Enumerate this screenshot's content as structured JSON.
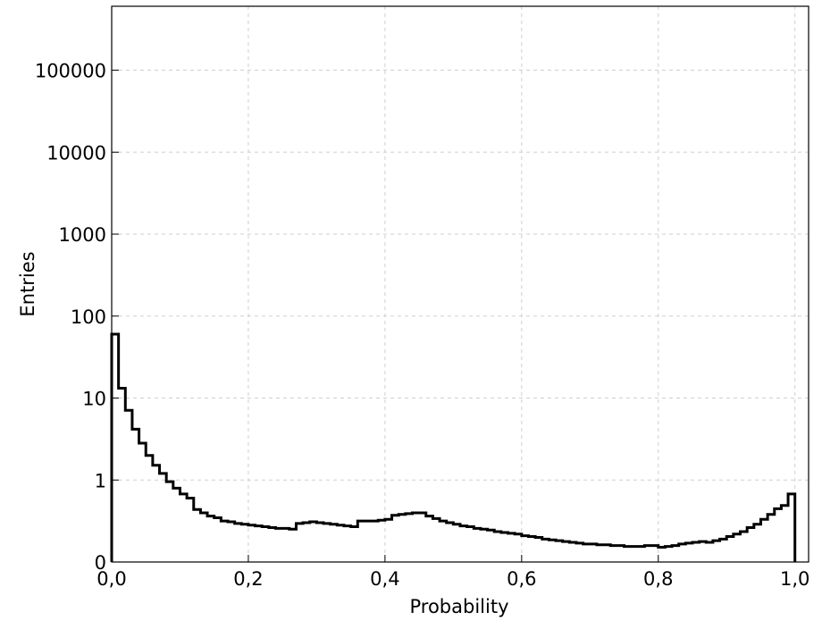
{
  "chart_data": {
    "type": "histogram-step",
    "xlabel": "Probability",
    "ylabel": "Entries",
    "xlim": [
      0.0,
      1.02
    ],
    "ylim_log_decades": [
      0,
      6.78
    ],
    "y_scale": "log (0 shown at bottom)",
    "grid": true,
    "x_ticks": [
      {
        "value": 0.0,
        "label": "0,0"
      },
      {
        "value": 0.2,
        "label": "0,2"
      },
      {
        "value": 0.4,
        "label": "0,4"
      },
      {
        "value": 0.6,
        "label": "0,6"
      },
      {
        "value": 0.8,
        "label": "0,8"
      },
      {
        "value": 1.0,
        "label": "1,0"
      }
    ],
    "y_ticks": [
      {
        "value": 0,
        "label": "0"
      },
      {
        "value": 1,
        "label": "1"
      },
      {
        "value": 10,
        "label": "10"
      },
      {
        "value": 100,
        "label": "100"
      },
      {
        "value": 1000,
        "label": "1000"
      },
      {
        "value": 10000,
        "label": "10000"
      },
      {
        "value": 100000,
        "label": "100000"
      }
    ],
    "series": [
      {
        "color": "#000000",
        "points": [
          [
            0.0,
            2.78
          ],
          [
            0.01,
            2.12
          ],
          [
            0.02,
            1.85
          ],
          [
            0.03,
            1.62
          ],
          [
            0.04,
            1.45
          ],
          [
            0.05,
            1.3
          ],
          [
            0.06,
            1.18
          ],
          [
            0.07,
            1.08
          ],
          [
            0.08,
            0.98
          ],
          [
            0.09,
            0.9
          ],
          [
            0.1,
            0.83
          ],
          [
            0.11,
            0.78
          ],
          [
            0.12,
            0.64
          ],
          [
            0.13,
            0.6
          ],
          [
            0.14,
            0.56
          ],
          [
            0.15,
            0.54
          ],
          [
            0.16,
            0.5
          ],
          [
            0.17,
            0.49
          ],
          [
            0.18,
            0.47
          ],
          [
            0.19,
            0.46
          ],
          [
            0.2,
            0.45
          ],
          [
            0.21,
            0.44
          ],
          [
            0.22,
            0.43
          ],
          [
            0.23,
            0.42
          ],
          [
            0.24,
            0.41
          ],
          [
            0.25,
            0.41
          ],
          [
            0.26,
            0.4
          ],
          [
            0.27,
            0.47
          ],
          [
            0.28,
            0.48
          ],
          [
            0.29,
            0.49
          ],
          [
            0.3,
            0.48
          ],
          [
            0.31,
            0.47
          ],
          [
            0.32,
            0.46
          ],
          [
            0.33,
            0.45
          ],
          [
            0.34,
            0.44
          ],
          [
            0.35,
            0.43
          ],
          [
            0.36,
            0.5
          ],
          [
            0.37,
            0.5
          ],
          [
            0.38,
            0.5
          ],
          [
            0.39,
            0.51
          ],
          [
            0.4,
            0.52
          ],
          [
            0.41,
            0.57
          ],
          [
            0.42,
            0.58
          ],
          [
            0.43,
            0.59
          ],
          [
            0.44,
            0.6
          ],
          [
            0.45,
            0.6
          ],
          [
            0.46,
            0.56
          ],
          [
            0.47,
            0.53
          ],
          [
            0.48,
            0.5
          ],
          [
            0.49,
            0.48
          ],
          [
            0.5,
            0.46
          ],
          [
            0.51,
            0.44
          ],
          [
            0.52,
            0.43
          ],
          [
            0.53,
            0.41
          ],
          [
            0.54,
            0.4
          ],
          [
            0.55,
            0.39
          ],
          [
            0.56,
            0.37
          ],
          [
            0.57,
            0.36
          ],
          [
            0.58,
            0.35
          ],
          [
            0.59,
            0.34
          ],
          [
            0.6,
            0.32
          ],
          [
            0.61,
            0.31
          ],
          [
            0.62,
            0.3
          ],
          [
            0.63,
            0.28
          ],
          [
            0.64,
            0.27
          ],
          [
            0.65,
            0.26
          ],
          [
            0.66,
            0.25
          ],
          [
            0.67,
            0.24
          ],
          [
            0.68,
            0.23
          ],
          [
            0.69,
            0.22
          ],
          [
            0.7,
            0.22
          ],
          [
            0.71,
            0.21
          ],
          [
            0.72,
            0.21
          ],
          [
            0.73,
            0.2
          ],
          [
            0.74,
            0.2
          ],
          [
            0.75,
            0.19
          ],
          [
            0.76,
            0.19
          ],
          [
            0.77,
            0.19
          ],
          [
            0.78,
            0.2
          ],
          [
            0.79,
            0.2
          ],
          [
            0.8,
            0.18
          ],
          [
            0.81,
            0.19
          ],
          [
            0.82,
            0.2
          ],
          [
            0.83,
            0.22
          ],
          [
            0.84,
            0.23
          ],
          [
            0.85,
            0.24
          ],
          [
            0.86,
            0.25
          ],
          [
            0.87,
            0.24
          ],
          [
            0.88,
            0.26
          ],
          [
            0.89,
            0.28
          ],
          [
            0.9,
            0.31
          ],
          [
            0.91,
            0.34
          ],
          [
            0.92,
            0.37
          ],
          [
            0.93,
            0.42
          ],
          [
            0.94,
            0.46
          ],
          [
            0.95,
            0.52
          ],
          [
            0.96,
            0.58
          ],
          [
            0.97,
            0.65
          ],
          [
            0.98,
            0.69
          ],
          [
            0.99,
            0.83
          ]
        ]
      }
    ]
  }
}
